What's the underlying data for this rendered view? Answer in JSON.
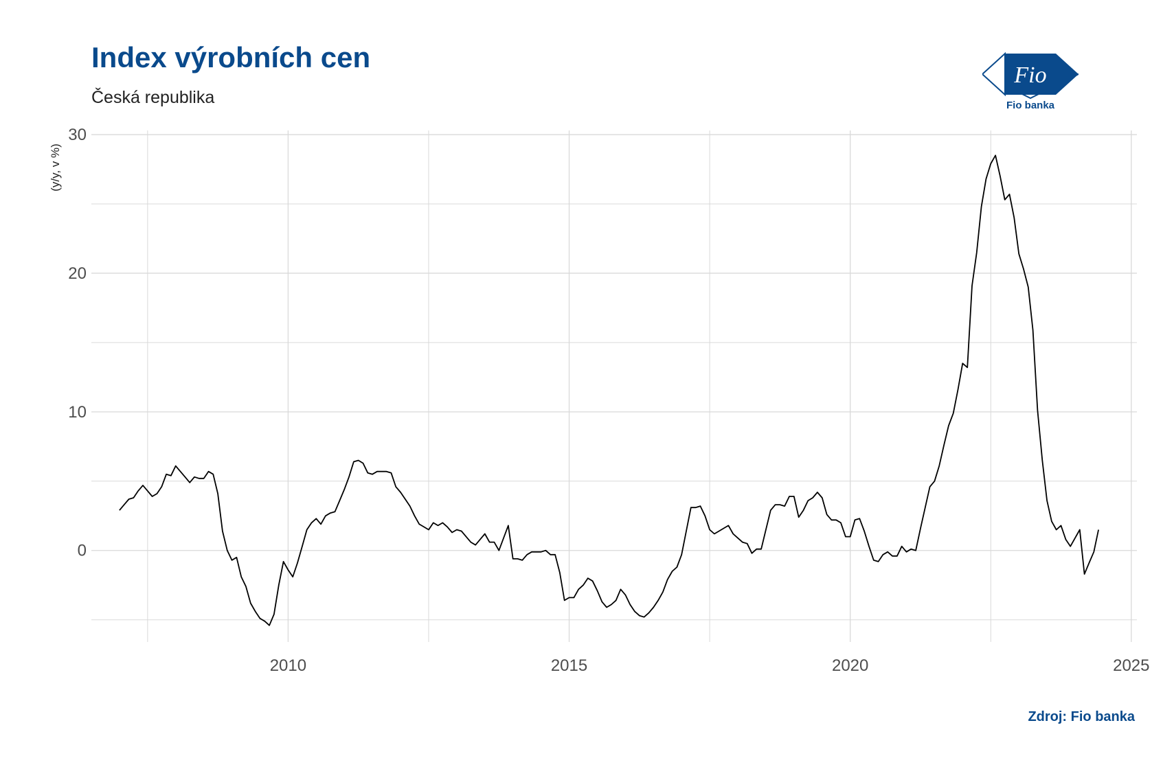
{
  "title": "Index výrobních cen",
  "subtitle": "Česká republika",
  "source": "Zdroj: Fio banka",
  "logo": {
    "mark": "Fio",
    "text": "Fio banka"
  },
  "colors": {
    "brand": "#0a4a8c",
    "line": "#000000",
    "grid": "#d9d9d9"
  },
  "chart_data": {
    "type": "line",
    "ylabel": "(y/y, v %)",
    "xlabel": "",
    "xlim": [
      2006.5,
      2025.1
    ],
    "ylim": [
      -6.6,
      30.3
    ],
    "x_ticks": [
      2010,
      2015,
      2020,
      2025
    ],
    "x_tick_labels": [
      "2010",
      "2015",
      "2020",
      "2025"
    ],
    "y_ticks": [
      0,
      10,
      20,
      30
    ],
    "y_tick_labels": [
      "0",
      "10",
      "20",
      "30"
    ],
    "grid": true,
    "series": [
      {
        "x_start": 2007.0,
        "step": 0.0833333,
        "values": [
          2.9,
          3.3,
          3.7,
          3.8,
          4.3,
          4.7,
          4.3,
          3.9,
          4.1,
          4.6,
          5.5,
          5.4,
          6.1,
          5.7,
          5.3,
          4.9,
          5.3,
          5.2,
          5.2,
          5.7,
          5.5,
          4.1,
          1.4,
          0.0,
          -0.7,
          -0.5,
          -1.9,
          -2.6,
          -3.8,
          -4.4,
          -4.9,
          -5.1,
          -5.4,
          -4.6,
          -2.5,
          -0.8,
          -1.4,
          -1.9,
          -0.9,
          0.3,
          1.5,
          2.0,
          2.3,
          1.9,
          2.5,
          2.7,
          2.8,
          3.6,
          4.4,
          5.3,
          6.4,
          6.5,
          6.3,
          5.6,
          5.5,
          5.7,
          5.7,
          5.7,
          5.6,
          4.6,
          4.2,
          3.7,
          3.2,
          2.5,
          1.9,
          1.7,
          1.5,
          2.0,
          1.8,
          2.0,
          1.7,
          1.3,
          1.5,
          1.4,
          1.0,
          0.6,
          0.4,
          0.8,
          1.2,
          0.6,
          0.6,
          0.0,
          0.9,
          1.8,
          -0.6,
          -0.6,
          -0.7,
          -0.3,
          -0.1,
          -0.1,
          -0.1,
          0.0,
          -0.3,
          -0.3,
          -1.6,
          -3.6,
          -3.4,
          -3.4,
          -2.8,
          -2.5,
          -2.0,
          -2.2,
          -2.9,
          -3.7,
          -4.1,
          -3.9,
          -3.6,
          -2.8,
          -3.2,
          -3.9,
          -4.4,
          -4.7,
          -4.8,
          -4.5,
          -4.1,
          -3.6,
          -3.0,
          -2.1,
          -1.5,
          -1.2,
          -0.3,
          1.4,
          3.1,
          3.1,
          3.2,
          2.5,
          1.5,
          1.2,
          1.4,
          1.6,
          1.8,
          1.2,
          0.9,
          0.6,
          0.5,
          -0.2,
          0.1,
          0.1,
          1.5,
          2.9,
          3.3,
          3.3,
          3.2,
          3.9,
          3.9,
          2.4,
          2.9,
          3.6,
          3.8,
          4.2,
          3.8,
          2.6,
          2.2,
          2.2,
          2.0,
          1.0,
          1.0,
          2.2,
          2.3,
          1.4,
          0.3,
          -0.7,
          -0.8,
          -0.3,
          -0.1,
          -0.4,
          -0.4,
          0.3,
          -0.1,
          0.1,
          0.0,
          1.6,
          3.1,
          4.6,
          5.0,
          6.1,
          7.6,
          9.0,
          9.9,
          11.6,
          13.5,
          13.2,
          19.1,
          21.5,
          24.8,
          26.8,
          27.9,
          28.5,
          27.0,
          25.3,
          25.7,
          24.0,
          21.4,
          20.3,
          19.0,
          15.9,
          10.1,
          6.5,
          3.6,
          2.1,
          1.5,
          1.8,
          0.8,
          0.3,
          0.9,
          1.5,
          -1.7,
          -0.9,
          -0.1,
          1.5
        ]
      }
    ]
  }
}
